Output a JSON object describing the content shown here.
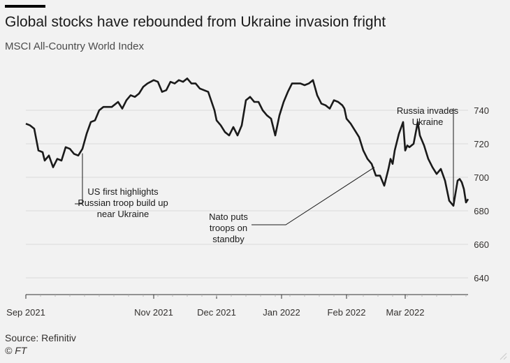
{
  "header": {
    "title": "Global stocks have rebounded from Ukraine invasion fright",
    "subtitle": "MSCI All-Country World Index"
  },
  "footer": {
    "source": "Source: Refinitiv",
    "credit": "© FT"
  },
  "colors": {
    "background": "#f2f2f2",
    "line": "#1a1a1a",
    "grid": "#d9d9d9",
    "axis": "#333333",
    "text": "#33302e"
  },
  "chart_data": {
    "type": "line",
    "title": "Global stocks have rebounded from Ukraine invasion fright",
    "subtitle": "MSCI All-Country World Index",
    "xlabel": "",
    "ylabel": "",
    "ylim": [
      630,
      750
    ],
    "xlim": [
      "2021-09-01",
      "2022-03-31"
    ],
    "y_ticks": [
      640,
      660,
      680,
      700,
      720,
      740
    ],
    "y_axis_position": "right",
    "grid": "horizontal",
    "x_ticks": [
      {
        "date": "2021-09-01",
        "label": "Sep 2021"
      },
      {
        "date": "2021-11-01",
        "label": "Nov 2021"
      },
      {
        "date": "2021-12-01",
        "label": "Dec 2021"
      },
      {
        "date": "2022-01-01",
        "label": "Jan 2022"
      },
      {
        "date": "2022-02-01",
        "label": "Feb 2022"
      },
      {
        "date": "2022-03-01",
        "label": "Mar 2022"
      }
    ],
    "series": [
      {
        "points": [
          [
            "2021-09-01",
            732
          ],
          [
            "2021-09-03",
            731
          ],
          [
            "2021-09-05",
            729
          ],
          [
            "2021-09-07",
            716
          ],
          [
            "2021-09-09",
            715
          ],
          [
            "2021-09-10",
            710
          ],
          [
            "2021-09-12",
            713
          ],
          [
            "2021-09-14",
            706
          ],
          [
            "2021-09-16",
            711
          ],
          [
            "2021-09-18",
            710
          ],
          [
            "2021-09-20",
            718
          ],
          [
            "2021-09-22",
            717
          ],
          [
            "2021-09-24",
            714
          ],
          [
            "2021-09-26",
            713
          ],
          [
            "2021-09-28",
            717
          ],
          [
            "2021-09-30",
            726
          ],
          [
            "2021-10-02",
            733
          ],
          [
            "2021-10-04",
            734
          ],
          [
            "2021-10-06",
            740
          ],
          [
            "2021-10-08",
            742
          ],
          [
            "2021-10-10",
            742
          ],
          [
            "2021-10-12",
            742
          ],
          [
            "2021-10-15",
            745
          ],
          [
            "2021-10-17",
            741
          ],
          [
            "2021-10-19",
            746
          ],
          [
            "2021-10-21",
            749
          ],
          [
            "2021-10-23",
            748
          ],
          [
            "2021-10-25",
            750
          ],
          [
            "2021-10-27",
            754
          ],
          [
            "2021-10-29",
            756
          ],
          [
            "2021-11-01",
            758
          ],
          [
            "2021-11-03",
            757
          ],
          [
            "2021-11-05",
            751
          ],
          [
            "2021-11-07",
            752
          ],
          [
            "2021-11-09",
            757
          ],
          [
            "2021-11-11",
            756
          ],
          [
            "2021-11-13",
            758
          ],
          [
            "2021-11-15",
            757
          ],
          [
            "2021-11-17",
            759
          ],
          [
            "2021-11-19",
            756
          ],
          [
            "2021-11-21",
            756
          ],
          [
            "2021-11-23",
            753
          ],
          [
            "2021-11-25",
            752
          ],
          [
            "2021-11-27",
            751
          ],
          [
            "2021-11-30",
            740
          ],
          [
            "2021-12-01",
            734
          ],
          [
            "2021-12-03",
            731
          ],
          [
            "2021-12-05",
            727
          ],
          [
            "2021-12-07",
            725
          ],
          [
            "2021-12-09",
            730
          ],
          [
            "2021-12-11",
            725
          ],
          [
            "2021-12-13",
            731
          ],
          [
            "2021-12-15",
            746
          ],
          [
            "2021-12-17",
            748
          ],
          [
            "2021-12-19",
            745
          ],
          [
            "2021-12-21",
            745
          ],
          [
            "2021-12-23",
            740
          ],
          [
            "2021-12-25",
            737
          ],
          [
            "2021-12-27",
            735
          ],
          [
            "2021-12-29",
            725
          ],
          [
            "2021-12-31",
            737
          ],
          [
            "2022-01-02",
            745
          ],
          [
            "2022-01-04",
            751
          ],
          [
            "2022-01-06",
            756
          ],
          [
            "2022-01-08",
            756
          ],
          [
            "2022-01-10",
            756
          ],
          [
            "2022-01-12",
            755
          ],
          [
            "2022-01-14",
            756
          ],
          [
            "2022-01-16",
            758
          ],
          [
            "2022-01-18",
            749
          ],
          [
            "2022-01-20",
            744
          ],
          [
            "2022-01-22",
            743
          ],
          [
            "2022-01-24",
            741
          ],
          [
            "2022-01-26",
            746
          ],
          [
            "2022-01-28",
            745
          ],
          [
            "2022-01-30",
            743
          ],
          [
            "2022-01-31",
            741
          ],
          [
            "2022-02-01",
            735
          ],
          [
            "2022-02-03",
            732
          ],
          [
            "2022-02-05",
            728
          ],
          [
            "2022-02-07",
            724
          ],
          [
            "2022-02-09",
            716
          ],
          [
            "2022-02-11",
            711
          ],
          [
            "2022-02-13",
            708
          ],
          [
            "2022-02-15",
            701
          ],
          [
            "2022-02-17",
            701
          ],
          [
            "2022-02-19",
            695
          ],
          [
            "2022-02-21",
            705
          ],
          [
            "2022-02-22",
            711
          ],
          [
            "2022-02-23",
            708
          ],
          [
            "2022-02-24",
            716
          ],
          [
            "2022-02-26",
            726
          ],
          [
            "2022-02-28",
            733
          ],
          [
            "2022-03-01",
            716
          ],
          [
            "2022-03-02",
            719
          ],
          [
            "2022-03-03",
            718
          ],
          [
            "2022-03-05",
            720
          ],
          [
            "2022-03-07",
            733
          ],
          [
            "2022-03-08",
            725
          ],
          [
            "2022-03-10",
            719
          ],
          [
            "2022-03-12",
            711
          ],
          [
            "2022-03-14",
            706
          ],
          [
            "2022-03-16",
            702
          ],
          [
            "2022-03-18",
            705
          ],
          [
            "2022-03-20",
            698
          ],
          [
            "2022-03-22",
            686
          ],
          [
            "2022-03-24",
            683
          ],
          [
            "2022-03-26",
            698
          ],
          [
            "2022-03-27",
            699
          ],
          [
            "2022-03-28",
            697
          ],
          [
            "2022-03-29",
            693
          ],
          [
            "2022-03-30",
            685
          ],
          [
            "2022-03-31",
            687
          ]
        ]
      }
    ],
    "annotations": [
      {
        "lines": [
          "US first highlights",
          "Russian troop build up",
          "near Ukraine"
        ],
        "date": "2021-09-28"
      },
      {
        "lines": [
          "Nato puts",
          "troops on",
          "standby"
        ],
        "date": "2022-02-15"
      },
      {
        "lines": [
          "Russia invades",
          "Ukraine"
        ],
        "date": "2022-03-24"
      }
    ]
  }
}
